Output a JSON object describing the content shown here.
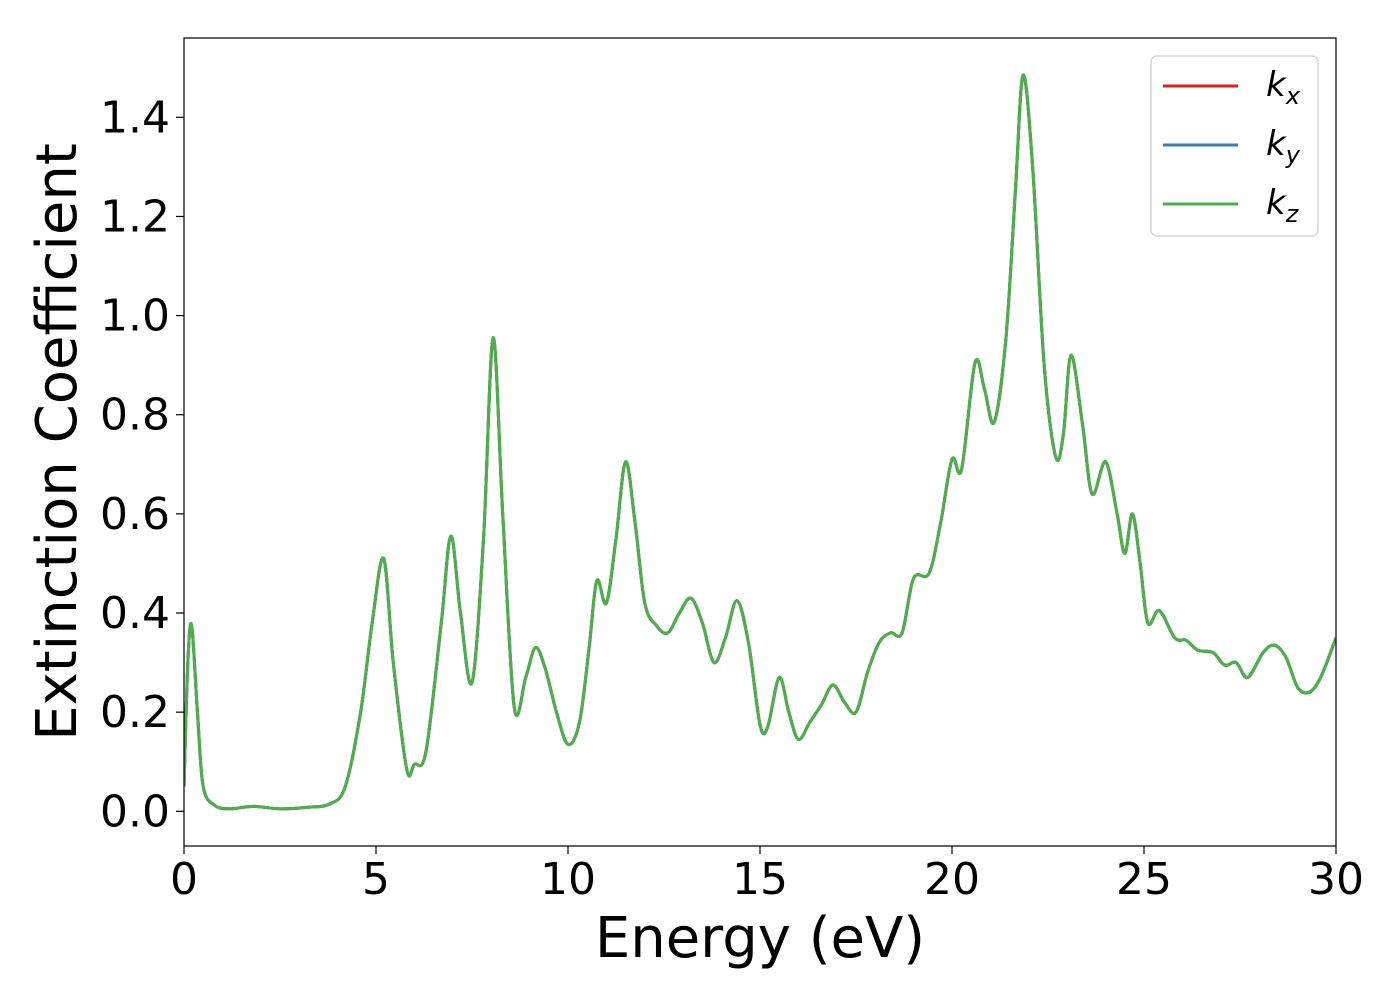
{
  "chart_data": {
    "type": "line",
    "xlabel": "Energy (eV)",
    "ylabel": "Extinction Coefficient",
    "xlim": [
      0,
      30
    ],
    "ylim": [
      -0.07,
      1.56
    ],
    "xticks": [
      0,
      5,
      10,
      15,
      20,
      25,
      30
    ],
    "yticks": [
      0.0,
      0.2,
      0.4,
      0.6,
      0.8,
      1.0,
      1.2,
      1.4
    ],
    "grid": false,
    "legend_position": "top-right",
    "series": [
      {
        "name": "k_x",
        "legend_base": "k",
        "legend_sub": "x",
        "color": "#e41a1c",
        "points": [
          [
            0.0,
            0.05
          ],
          [
            0.1,
            0.3
          ],
          [
            0.2,
            0.375
          ],
          [
            0.35,
            0.2
          ],
          [
            0.5,
            0.05
          ],
          [
            0.8,
            0.012
          ],
          [
            1.2,
            0.005
          ],
          [
            1.8,
            0.01
          ],
          [
            2.5,
            0.005
          ],
          [
            3.2,
            0.008
          ],
          [
            3.8,
            0.015
          ],
          [
            4.2,
            0.05
          ],
          [
            4.6,
            0.2
          ],
          [
            4.9,
            0.38
          ],
          [
            5.2,
            0.51
          ],
          [
            5.45,
            0.3
          ],
          [
            5.8,
            0.085
          ],
          [
            6.0,
            0.095
          ],
          [
            6.3,
            0.12
          ],
          [
            6.7,
            0.38
          ],
          [
            6.95,
            0.555
          ],
          [
            7.2,
            0.4
          ],
          [
            7.5,
            0.26
          ],
          [
            7.8,
            0.55
          ],
          [
            8.05,
            0.955
          ],
          [
            8.3,
            0.6
          ],
          [
            8.6,
            0.21
          ],
          [
            8.9,
            0.27
          ],
          [
            9.15,
            0.33
          ],
          [
            9.4,
            0.29
          ],
          [
            9.7,
            0.2
          ],
          [
            10.0,
            0.135
          ],
          [
            10.3,
            0.18
          ],
          [
            10.55,
            0.33
          ],
          [
            10.75,
            0.465
          ],
          [
            11.0,
            0.42
          ],
          [
            11.25,
            0.55
          ],
          [
            11.5,
            0.705
          ],
          [
            11.75,
            0.58
          ],
          [
            12.0,
            0.42
          ],
          [
            12.3,
            0.375
          ],
          [
            12.6,
            0.36
          ],
          [
            12.9,
            0.4
          ],
          [
            13.2,
            0.43
          ],
          [
            13.5,
            0.38
          ],
          [
            13.8,
            0.3
          ],
          [
            14.1,
            0.35
          ],
          [
            14.4,
            0.425
          ],
          [
            14.7,
            0.34
          ],
          [
            15.0,
            0.175
          ],
          [
            15.2,
            0.17
          ],
          [
            15.5,
            0.27
          ],
          [
            15.75,
            0.2
          ],
          [
            16.0,
            0.145
          ],
          [
            16.3,
            0.18
          ],
          [
            16.6,
            0.215
          ],
          [
            16.9,
            0.255
          ],
          [
            17.2,
            0.22
          ],
          [
            17.5,
            0.2
          ],
          [
            17.8,
            0.28
          ],
          [
            18.1,
            0.34
          ],
          [
            18.4,
            0.36
          ],
          [
            18.7,
            0.36
          ],
          [
            19.0,
            0.47
          ],
          [
            19.4,
            0.48
          ],
          [
            19.7,
            0.58
          ],
          [
            20.0,
            0.71
          ],
          [
            20.25,
            0.69
          ],
          [
            20.6,
            0.905
          ],
          [
            20.85,
            0.85
          ],
          [
            21.1,
            0.785
          ],
          [
            21.4,
            0.95
          ],
          [
            21.65,
            1.25
          ],
          [
            21.85,
            1.485
          ],
          [
            22.1,
            1.3
          ],
          [
            22.4,
            0.9
          ],
          [
            22.7,
            0.715
          ],
          [
            22.9,
            0.76
          ],
          [
            23.1,
            0.92
          ],
          [
            23.4,
            0.78
          ],
          [
            23.65,
            0.64
          ],
          [
            24.0,
            0.705
          ],
          [
            24.3,
            0.6
          ],
          [
            24.5,
            0.52
          ],
          [
            24.7,
            0.6
          ],
          [
            24.9,
            0.5
          ],
          [
            25.1,
            0.38
          ],
          [
            25.4,
            0.405
          ],
          [
            25.8,
            0.35
          ],
          [
            26.1,
            0.345
          ],
          [
            26.4,
            0.325
          ],
          [
            26.8,
            0.32
          ],
          [
            27.1,
            0.295
          ],
          [
            27.4,
            0.3
          ],
          [
            27.7,
            0.27
          ],
          [
            28.1,
            0.32
          ],
          [
            28.4,
            0.335
          ],
          [
            28.7,
            0.31
          ],
          [
            29.0,
            0.25
          ],
          [
            29.3,
            0.24
          ],
          [
            29.6,
            0.27
          ],
          [
            30.0,
            0.35
          ]
        ]
      },
      {
        "name": "k_y",
        "legend_base": "k",
        "legend_sub": "y",
        "color": "#377eb8",
        "points": [
          [
            0.0,
            0.05
          ],
          [
            0.1,
            0.3
          ],
          [
            0.2,
            0.375
          ],
          [
            0.35,
            0.2
          ],
          [
            0.5,
            0.05
          ],
          [
            0.8,
            0.012
          ],
          [
            1.2,
            0.005
          ],
          [
            1.8,
            0.01
          ],
          [
            2.5,
            0.005
          ],
          [
            3.2,
            0.008
          ],
          [
            3.8,
            0.015
          ],
          [
            4.2,
            0.05
          ],
          [
            4.6,
            0.2
          ],
          [
            4.9,
            0.38
          ],
          [
            5.2,
            0.51
          ],
          [
            5.45,
            0.3
          ],
          [
            5.8,
            0.085
          ],
          [
            6.0,
            0.095
          ],
          [
            6.3,
            0.12
          ],
          [
            6.7,
            0.38
          ],
          [
            6.95,
            0.555
          ],
          [
            7.2,
            0.4
          ],
          [
            7.5,
            0.26
          ],
          [
            7.8,
            0.55
          ],
          [
            8.05,
            0.955
          ],
          [
            8.3,
            0.6
          ],
          [
            8.6,
            0.21
          ],
          [
            8.9,
            0.27
          ],
          [
            9.15,
            0.33
          ],
          [
            9.4,
            0.29
          ],
          [
            9.7,
            0.2
          ],
          [
            10.0,
            0.135
          ],
          [
            10.3,
            0.18
          ],
          [
            10.55,
            0.33
          ],
          [
            10.75,
            0.465
          ],
          [
            11.0,
            0.42
          ],
          [
            11.25,
            0.55
          ],
          [
            11.5,
            0.705
          ],
          [
            11.75,
            0.58
          ],
          [
            12.0,
            0.42
          ],
          [
            12.3,
            0.375
          ],
          [
            12.6,
            0.36
          ],
          [
            12.9,
            0.4
          ],
          [
            13.2,
            0.43
          ],
          [
            13.5,
            0.38
          ],
          [
            13.8,
            0.3
          ],
          [
            14.1,
            0.35
          ],
          [
            14.4,
            0.425
          ],
          [
            14.7,
            0.34
          ],
          [
            15.0,
            0.175
          ],
          [
            15.2,
            0.17
          ],
          [
            15.5,
            0.27
          ],
          [
            15.75,
            0.2
          ],
          [
            16.0,
            0.145
          ],
          [
            16.3,
            0.18
          ],
          [
            16.6,
            0.215
          ],
          [
            16.9,
            0.255
          ],
          [
            17.2,
            0.22
          ],
          [
            17.5,
            0.2
          ],
          [
            17.8,
            0.28
          ],
          [
            18.1,
            0.34
          ],
          [
            18.4,
            0.36
          ],
          [
            18.7,
            0.36
          ],
          [
            19.0,
            0.47
          ],
          [
            19.4,
            0.48
          ],
          [
            19.7,
            0.58
          ],
          [
            20.0,
            0.71
          ],
          [
            20.25,
            0.69
          ],
          [
            20.6,
            0.905
          ],
          [
            20.85,
            0.85
          ],
          [
            21.1,
            0.785
          ],
          [
            21.4,
            0.95
          ],
          [
            21.65,
            1.25
          ],
          [
            21.85,
            1.485
          ],
          [
            22.1,
            1.3
          ],
          [
            22.4,
            0.9
          ],
          [
            22.7,
            0.715
          ],
          [
            22.9,
            0.76
          ],
          [
            23.1,
            0.92
          ],
          [
            23.4,
            0.78
          ],
          [
            23.65,
            0.64
          ],
          [
            24.0,
            0.705
          ],
          [
            24.3,
            0.6
          ],
          [
            24.5,
            0.52
          ],
          [
            24.7,
            0.6
          ],
          [
            24.9,
            0.5
          ],
          [
            25.1,
            0.38
          ],
          [
            25.4,
            0.405
          ],
          [
            25.8,
            0.35
          ],
          [
            26.1,
            0.345
          ],
          [
            26.4,
            0.325
          ],
          [
            26.8,
            0.32
          ],
          [
            27.1,
            0.295
          ],
          [
            27.4,
            0.3
          ],
          [
            27.7,
            0.27
          ],
          [
            28.1,
            0.32
          ],
          [
            28.4,
            0.335
          ],
          [
            28.7,
            0.31
          ],
          [
            29.0,
            0.25
          ],
          [
            29.3,
            0.24
          ],
          [
            29.6,
            0.27
          ],
          [
            30.0,
            0.35
          ]
        ]
      },
      {
        "name": "k_z",
        "legend_base": "k",
        "legend_sub": "z",
        "color": "#4daf4a",
        "points": [
          [
            0.0,
            0.05
          ],
          [
            0.1,
            0.3
          ],
          [
            0.2,
            0.375
          ],
          [
            0.35,
            0.2
          ],
          [
            0.5,
            0.05
          ],
          [
            0.8,
            0.012
          ],
          [
            1.2,
            0.005
          ],
          [
            1.8,
            0.01
          ],
          [
            2.5,
            0.005
          ],
          [
            3.2,
            0.008
          ],
          [
            3.8,
            0.015
          ],
          [
            4.2,
            0.05
          ],
          [
            4.6,
            0.2
          ],
          [
            4.9,
            0.38
          ],
          [
            5.2,
            0.51
          ],
          [
            5.45,
            0.3
          ],
          [
            5.8,
            0.085
          ],
          [
            6.0,
            0.095
          ],
          [
            6.3,
            0.12
          ],
          [
            6.7,
            0.38
          ],
          [
            6.95,
            0.555
          ],
          [
            7.2,
            0.4
          ],
          [
            7.5,
            0.26
          ],
          [
            7.8,
            0.55
          ],
          [
            8.05,
            0.955
          ],
          [
            8.3,
            0.6
          ],
          [
            8.6,
            0.21
          ],
          [
            8.9,
            0.27
          ],
          [
            9.15,
            0.33
          ],
          [
            9.4,
            0.29
          ],
          [
            9.7,
            0.2
          ],
          [
            10.0,
            0.135
          ],
          [
            10.3,
            0.18
          ],
          [
            10.55,
            0.33
          ],
          [
            10.75,
            0.465
          ],
          [
            11.0,
            0.42
          ],
          [
            11.25,
            0.55
          ],
          [
            11.5,
            0.705
          ],
          [
            11.75,
            0.58
          ],
          [
            12.0,
            0.42
          ],
          [
            12.3,
            0.375
          ],
          [
            12.6,
            0.36
          ],
          [
            12.9,
            0.4
          ],
          [
            13.2,
            0.43
          ],
          [
            13.5,
            0.38
          ],
          [
            13.8,
            0.3
          ],
          [
            14.1,
            0.35
          ],
          [
            14.4,
            0.425
          ],
          [
            14.7,
            0.34
          ],
          [
            15.0,
            0.175
          ],
          [
            15.2,
            0.17
          ],
          [
            15.5,
            0.27
          ],
          [
            15.75,
            0.2
          ],
          [
            16.0,
            0.145
          ],
          [
            16.3,
            0.18
          ],
          [
            16.6,
            0.215
          ],
          [
            16.9,
            0.255
          ],
          [
            17.2,
            0.22
          ],
          [
            17.5,
            0.2
          ],
          [
            17.8,
            0.28
          ],
          [
            18.1,
            0.34
          ],
          [
            18.4,
            0.36
          ],
          [
            18.7,
            0.36
          ],
          [
            19.0,
            0.47
          ],
          [
            19.4,
            0.48
          ],
          [
            19.7,
            0.58
          ],
          [
            20.0,
            0.71
          ],
          [
            20.25,
            0.69
          ],
          [
            20.6,
            0.905
          ],
          [
            20.85,
            0.85
          ],
          [
            21.1,
            0.785
          ],
          [
            21.4,
            0.95
          ],
          [
            21.65,
            1.25
          ],
          [
            21.85,
            1.485
          ],
          [
            22.1,
            1.3
          ],
          [
            22.4,
            0.9
          ],
          [
            22.7,
            0.715
          ],
          [
            22.9,
            0.76
          ],
          [
            23.1,
            0.92
          ],
          [
            23.4,
            0.78
          ],
          [
            23.65,
            0.64
          ],
          [
            24.0,
            0.705
          ],
          [
            24.3,
            0.6
          ],
          [
            24.5,
            0.52
          ],
          [
            24.7,
            0.6
          ],
          [
            24.9,
            0.5
          ],
          [
            25.1,
            0.38
          ],
          [
            25.4,
            0.405
          ],
          [
            25.8,
            0.35
          ],
          [
            26.1,
            0.345
          ],
          [
            26.4,
            0.325
          ],
          [
            26.8,
            0.32
          ],
          [
            27.1,
            0.295
          ],
          [
            27.4,
            0.3
          ],
          [
            27.7,
            0.27
          ],
          [
            28.1,
            0.32
          ],
          [
            28.4,
            0.335
          ],
          [
            28.7,
            0.31
          ],
          [
            29.0,
            0.25
          ],
          [
            29.3,
            0.24
          ],
          [
            29.6,
            0.27
          ],
          [
            30.0,
            0.35
          ]
        ]
      }
    ]
  }
}
